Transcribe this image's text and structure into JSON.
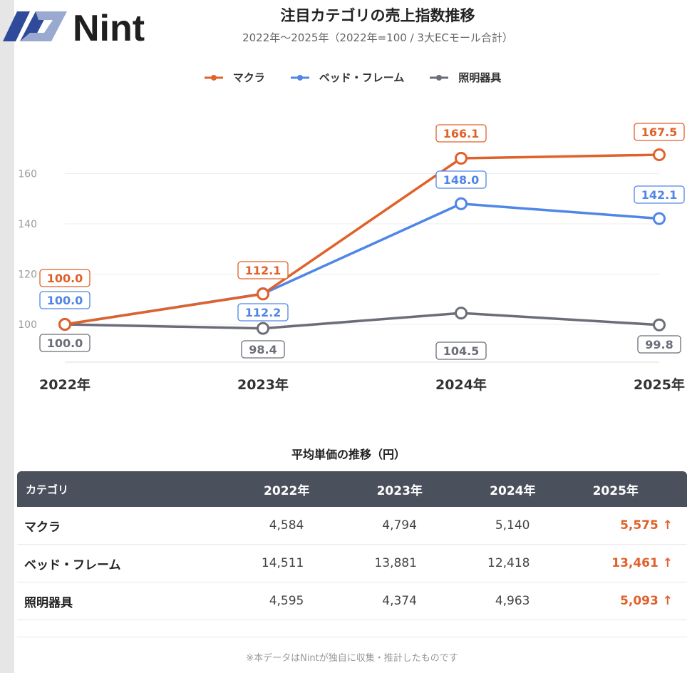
{
  "brand": {
    "name": "Nint"
  },
  "header": {
    "title": "注目カテゴリの売上指数推移",
    "subtitle": "2022年〜2025年（2022年=100 / 3大ECモール合計）"
  },
  "colors": {
    "マクラ": "#e0612a",
    "ベッド・フレーム": "#4f86e8",
    "照明器具": "#6b6e78"
  },
  "chart_data": {
    "type": "line",
    "categories": [
      "2022年",
      "2023年",
      "2024年",
      "2025年"
    ],
    "series": [
      {
        "name": "マクラ",
        "values": [
          100.0,
          112.1,
          166.1,
          167.5
        ],
        "labels": [
          "100.0",
          "112.1",
          "166.1",
          "167.5"
        ]
      },
      {
        "name": "ベッド・フレーム",
        "values": [
          100.0,
          112.2,
          148.0,
          142.1
        ],
        "labels": [
          "100.0",
          "112.2",
          "148.0",
          "142.1"
        ]
      },
      {
        "name": "照明器具",
        "values": [
          100.0,
          98.4,
          104.5,
          99.8
        ],
        "labels": [
          "100.0",
          "98.4",
          "104.5",
          "99.8"
        ]
      }
    ],
    "yticks": [
      "100",
      "120",
      "140",
      "160"
    ],
    "ylim": [
      85,
      180
    ],
    "grid": true,
    "legend": "top-center"
  },
  "table": {
    "title": "平均単価の推移（円）",
    "headers": [
      "カテゴリ",
      "2022年",
      "2023年",
      "2024年",
      "2025年"
    ],
    "rows": [
      [
        "マクラ",
        "4,584",
        "4,794",
        "5,140",
        "5,575 ↑"
      ],
      [
        "ベッド・フレーム",
        "14,511",
        "13,881",
        "12,418",
        "13,461 ↑"
      ],
      [
        "照明器具",
        "4,595",
        "4,374",
        "4,963",
        "5,093 ↑"
      ]
    ]
  },
  "footer": "※本データはNintが独自に収集・推計したものです"
}
